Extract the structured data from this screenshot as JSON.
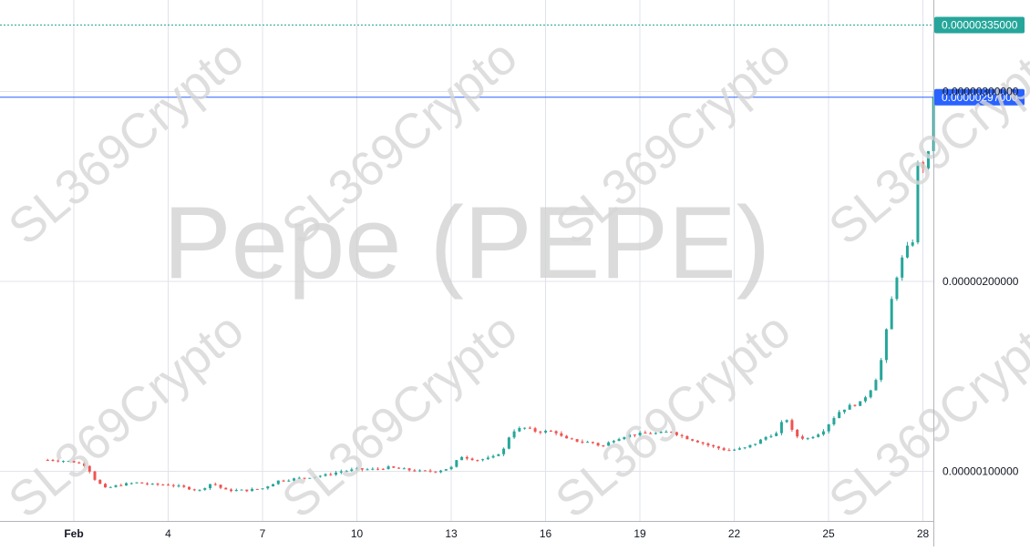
{
  "chart_data": {
    "type": "candlestick",
    "title": "Pepe (PEPE)",
    "watermark": "SL369Crypto",
    "colors": {
      "up": "#26a69a",
      "down": "#ef5350",
      "grid": "#e0e3eb",
      "last_price": "#26a69a",
      "level": "#2962ff",
      "axis_text": "#131722"
    },
    "x_axis": {
      "ticks": [
        {
          "label": "Feb",
          "day": 1,
          "bold": true
        },
        {
          "label": "4",
          "day": 4,
          "bold": false
        },
        {
          "label": "7",
          "day": 7,
          "bold": false
        },
        {
          "label": "10",
          "day": 10,
          "bold": false
        },
        {
          "label": "13",
          "day": 13,
          "bold": false
        },
        {
          "label": "16",
          "day": 16,
          "bold": false
        },
        {
          "label": "19",
          "day": 19,
          "bold": false
        },
        {
          "label": "22",
          "day": 22,
          "bold": false
        },
        {
          "label": "25",
          "day": 25,
          "bold": false
        },
        {
          "label": "28",
          "day": 28,
          "bold": false
        }
      ]
    },
    "y_axis": {
      "ticks": [
        {
          "label": "0.00000100000",
          "value": 1.0
        },
        {
          "label": "0.00000200000",
          "value": 2.0
        },
        {
          "label": "0.00000300000",
          "value": 3.0
        }
      ],
      "range": [
        0.75,
        3.45
      ],
      "unit": "x1e-6"
    },
    "price_labels": {
      "last": {
        "label": "0.00000335000",
        "value": 3.35
      },
      "level": {
        "label": "0.00000297000",
        "value": 2.97
      }
    },
    "close_anchors": [
      [
        0.4,
        1.06
      ],
      [
        1.0,
        1.05
      ],
      [
        1.4,
        1.03
      ],
      [
        1.7,
        0.95
      ],
      [
        2.0,
        0.91
      ],
      [
        2.5,
        0.93
      ],
      [
        3.0,
        0.94
      ],
      [
        3.5,
        0.93
      ],
      [
        4.0,
        0.93
      ],
      [
        5.0,
        0.9
      ],
      [
        5.4,
        0.94
      ],
      [
        5.8,
        0.9
      ],
      [
        6.5,
        0.9
      ],
      [
        7.0,
        0.91
      ],
      [
        7.5,
        0.95
      ],
      [
        8.0,
        0.96
      ],
      [
        9.0,
        0.98
      ],
      [
        9.5,
        1.0
      ],
      [
        10.0,
        1.01
      ],
      [
        10.5,
        1.01
      ],
      [
        11.0,
        1.02
      ],
      [
        11.5,
        1.01
      ],
      [
        12.0,
        1.0
      ],
      [
        12.5,
        1.0
      ],
      [
        13.0,
        1.02
      ],
      [
        13.3,
        1.08
      ],
      [
        13.8,
        1.06
      ],
      [
        14.3,
        1.07
      ],
      [
        14.7,
        1.12
      ],
      [
        14.9,
        1.21
      ],
      [
        15.3,
        1.23
      ],
      [
        15.7,
        1.21
      ],
      [
        16.3,
        1.21
      ],
      [
        16.6,
        1.17
      ],
      [
        17.0,
        1.16
      ],
      [
        17.5,
        1.15
      ],
      [
        17.8,
        1.13
      ],
      [
        18.2,
        1.17
      ],
      [
        18.6,
        1.19
      ],
      [
        19.2,
        1.2
      ],
      [
        19.6,
        1.2
      ],
      [
        20.0,
        1.21
      ],
      [
        20.4,
        1.18
      ],
      [
        20.8,
        1.16
      ],
      [
        21.3,
        1.13
      ],
      [
        21.8,
        1.11
      ],
      [
        22.3,
        1.12
      ],
      [
        22.7,
        1.15
      ],
      [
        23.1,
        1.19
      ],
      [
        23.4,
        1.2
      ],
      [
        23.6,
        1.3
      ],
      [
        23.9,
        1.19
      ],
      [
        24.3,
        1.17
      ],
      [
        24.8,
        1.21
      ],
      [
        25.0,
        1.25
      ],
      [
        25.3,
        1.31
      ],
      [
        25.6,
        1.34
      ],
      [
        26.0,
        1.36
      ],
      [
        26.3,
        1.42
      ],
      [
        26.6,
        1.52
      ],
      [
        26.8,
        1.7
      ],
      [
        27.0,
        1.9
      ],
      [
        27.2,
        2.05
      ],
      [
        27.4,
        2.15
      ],
      [
        27.6,
        2.2
      ],
      [
        27.7,
        2.22
      ],
      [
        27.75,
        2.6
      ],
      [
        27.85,
        2.62
      ],
      [
        28.0,
        2.6
      ],
      [
        28.15,
        2.66
      ],
      [
        28.3,
        2.74
      ],
      [
        28.4,
        3.35
      ]
    ],
    "start_day": 0.0,
    "end_day": 28.45,
    "candle_step_days": 0.1667
  }
}
